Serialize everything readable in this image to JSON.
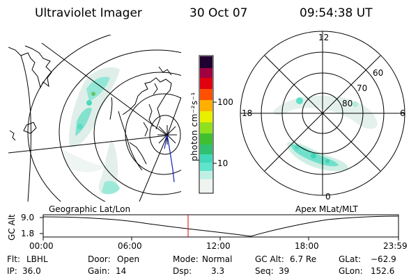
{
  "header": {
    "instrument": "Ultraviolet Imager",
    "date": "30 Oct 07",
    "time": "09:54:38 UT"
  },
  "geo_panel": {
    "caption": "Geographic Lat/Lon"
  },
  "colorbar": {
    "unit_label": "photon cm⁻²s⁻¹",
    "ticks": [
      {
        "value": 100,
        "label": "100"
      },
      {
        "value": 10,
        "label": "10"
      }
    ],
    "scale": "log",
    "range": [
      2.5,
      1000
    ],
    "colors": [
      "#f0f4f0",
      "#a8ecd8",
      "#40e0c8",
      "#30c060",
      "#80e020",
      "#f0f000",
      "#ffa000",
      "#ff2000",
      "#c00030",
      "#700050",
      "#100020"
    ]
  },
  "polar_panel": {
    "caption": "Apex MLat/MLT",
    "mlt_labels": {
      "top": "12",
      "left": "18",
      "right": "6",
      "bottom": "0"
    },
    "lat_labels": [
      "60",
      "70",
      "80"
    ]
  },
  "altitude_plot": {
    "axis_label": "GC Alt",
    "y_ticks": [
      "9.0",
      "1.8"
    ],
    "x_ticks": [
      "00:00",
      "06:00",
      "12:00",
      "18:00",
      "23:59"
    ],
    "marker_time": "09:54"
  },
  "info": {
    "flt_label": "Flt:",
    "flt_value": "LBHL",
    "ip_label": "IP:",
    "ip_value": "36.0",
    "door_label": "Door:",
    "door_value": "Open",
    "gain_label": "Gain:",
    "gain_value": "14",
    "mode_label": "Mode:",
    "mode_value": "Normal",
    "dsp_label": "Dsp:",
    "dsp_value": "3.3",
    "gcalt_label": "GC Alt:",
    "gcalt_value": "6.7 Re",
    "seq_label": "Seq:",
    "seq_value": "39",
    "glat_label": "GLat:",
    "glat_value": "−62.9",
    "glon_label": "GLon:",
    "glon_value": "152.6"
  }
}
